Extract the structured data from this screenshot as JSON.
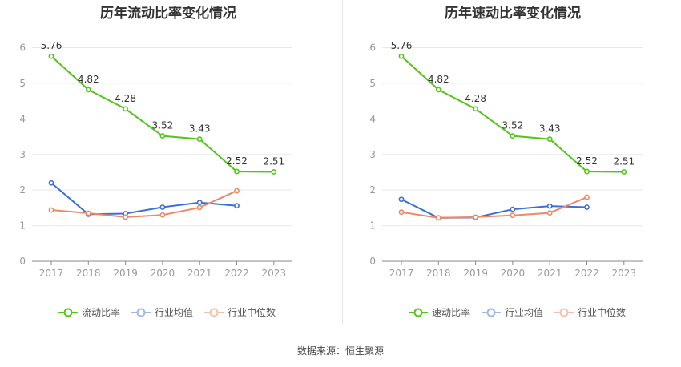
{
  "source_label": "数据来源：",
  "source_value": "恒生聚源",
  "colors": {
    "main": "#52c41a",
    "avg": "#3b6fd6",
    "median": "#ee8866",
    "axis": "#999999",
    "grid": "#e6e9ef",
    "label": "#333333"
  },
  "chart_data": [
    {
      "type": "line",
      "title": "历年流动比率变化情况",
      "categories": [
        "2017",
        "2018",
        "2019",
        "2020",
        "2021",
        "2022",
        "2023"
      ],
      "ylim": [
        0,
        6
      ],
      "yticks": [
        "0",
        "1",
        "2",
        "3",
        "4",
        "5",
        "6"
      ],
      "legend_position": "bottom",
      "series": [
        {
          "name": "流动比率",
          "values": [
            5.76,
            4.82,
            4.28,
            3.52,
            3.43,
            2.52,
            2.51
          ],
          "labels": [
            "5.76",
            "4.82",
            "4.28",
            "3.52",
            "3.43",
            "2.52",
            "2.51"
          ]
        },
        {
          "name": "行业均值",
          "values": [
            2.2,
            1.32,
            1.34,
            1.52,
            1.65,
            1.56,
            null
          ]
        },
        {
          "name": "行业中位数",
          "values": [
            1.44,
            1.35,
            1.24,
            1.3,
            1.51,
            1.98,
            null
          ]
        }
      ]
    },
    {
      "type": "line",
      "title": "历年速动比率变化情况",
      "categories": [
        "2017",
        "2018",
        "2019",
        "2020",
        "2021",
        "2022",
        "2023"
      ],
      "ylim": [
        0,
        6
      ],
      "yticks": [
        "0",
        "1",
        "2",
        "3",
        "4",
        "5",
        "6"
      ],
      "legend_position": "bottom",
      "series": [
        {
          "name": "速动比率",
          "values": [
            5.76,
            4.82,
            4.28,
            3.52,
            3.43,
            2.52,
            2.51
          ],
          "labels": [
            "5.76",
            "4.82",
            "4.28",
            "3.52",
            "3.43",
            "2.52",
            "2.51"
          ]
        },
        {
          "name": "行业均值",
          "values": [
            1.74,
            1.22,
            1.23,
            1.46,
            1.55,
            1.52,
            null
          ]
        },
        {
          "name": "行业中位数",
          "values": [
            1.38,
            1.22,
            1.24,
            1.29,
            1.36,
            1.8,
            null
          ]
        }
      ]
    }
  ]
}
